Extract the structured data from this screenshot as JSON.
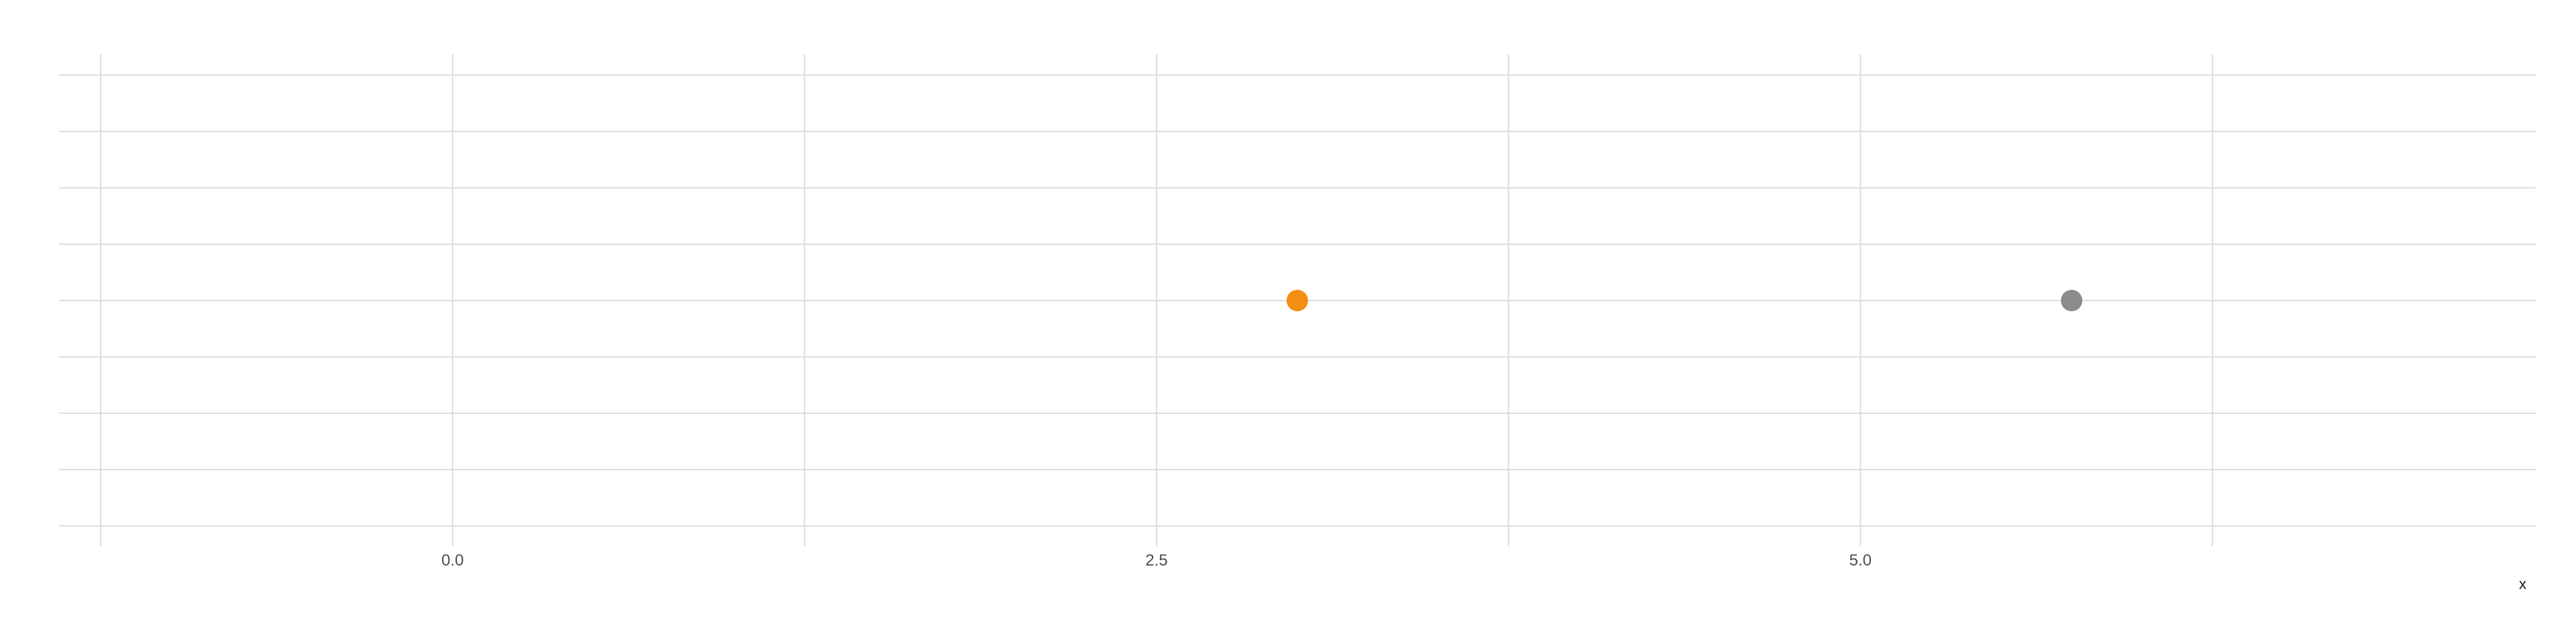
{
  "chart_data": {
    "type": "scatter",
    "title": "",
    "xlabel": "x",
    "ylabel": "",
    "xlim": [
      -1.25,
      7.55
    ],
    "ylim": [
      -0.4,
      0.4
    ],
    "x_ticks": [
      0.0,
      2.5,
      5.0
    ],
    "x_tick_labels": [
      "0.0",
      "2.5",
      "5.0"
    ],
    "x_minor_ticks": [
      -1.25,
      1.25,
      3.75,
      6.25
    ],
    "y_gridlines": [
      -0.4,
      -0.3,
      -0.2,
      -0.1,
      0.0,
      0.1,
      0.2,
      0.3,
      0.4
    ],
    "grid": true,
    "legend": "none",
    "points": [
      {
        "x": 3.0,
        "y": 0.0,
        "color": "#f28e12"
      },
      {
        "x": 5.75,
        "y": 0.0,
        "color": "#8c8c8c"
      }
    ]
  }
}
